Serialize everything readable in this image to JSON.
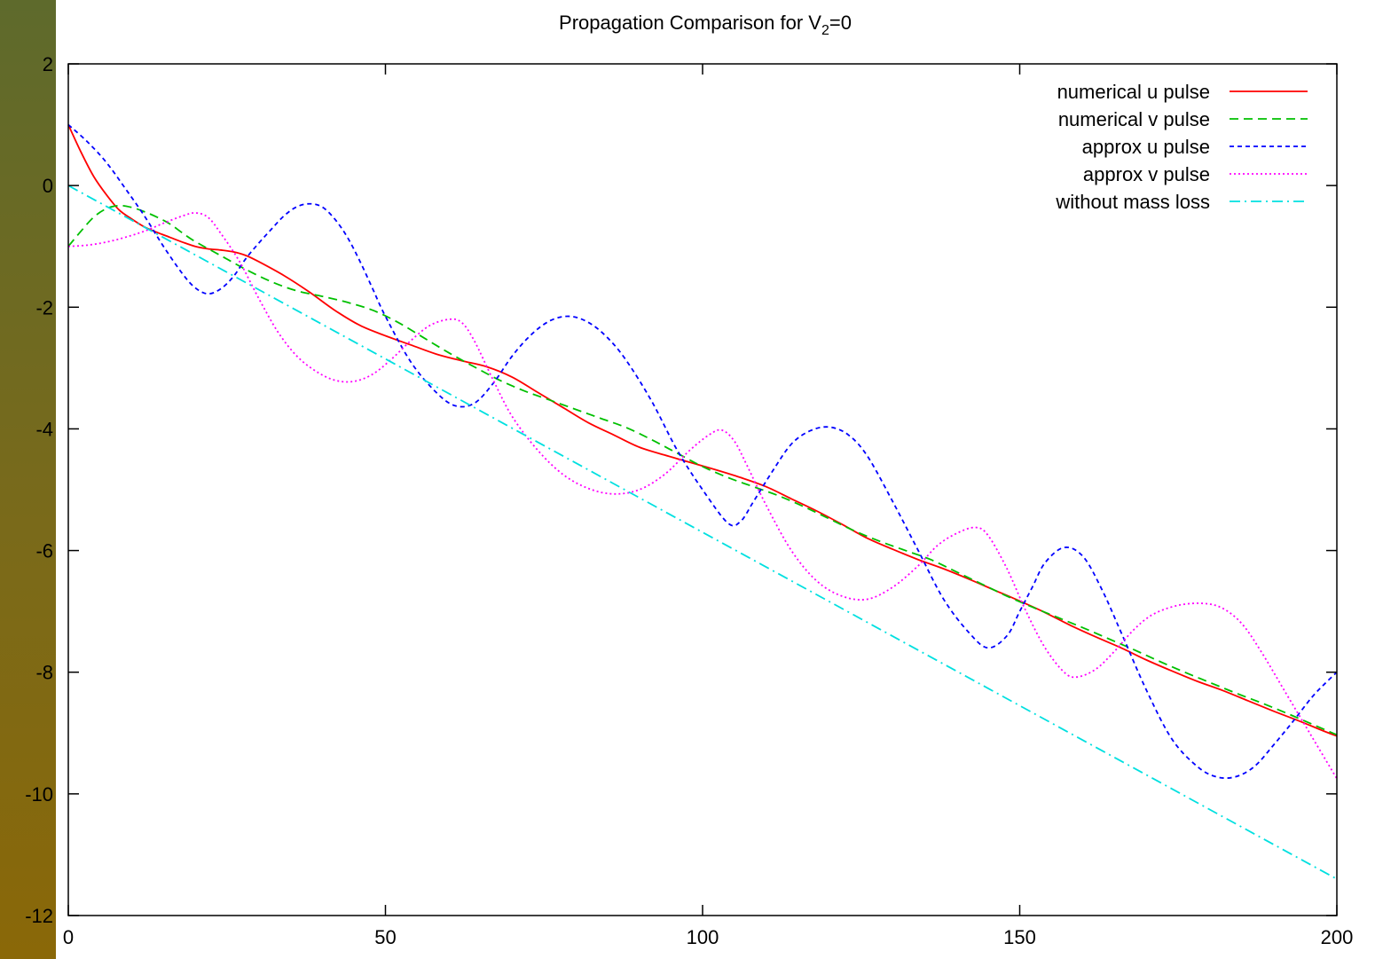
{
  "chart_data": {
    "type": "line",
    "title": "Propagation Comparison for V",
    "title_sub": "2",
    "title_suffix": "=0",
    "xlabel": "",
    "ylabel": "",
    "xlim": [
      0,
      200
    ],
    "ylim": [
      -12,
      2
    ],
    "xticks": [
      0,
      50,
      100,
      150,
      200
    ],
    "yticks": [
      2,
      0,
      -2,
      -4,
      -6,
      -8,
      -10,
      -12
    ],
    "grid": false,
    "legend_position": "top-right",
    "series": [
      {
        "name": "numerical u pulse",
        "color": "#ff0000",
        "dash": "solid",
        "points": [
          [
            0,
            1.0
          ],
          [
            2,
            0.55
          ],
          [
            4,
            0.15
          ],
          [
            6,
            -0.15
          ],
          [
            8,
            -0.4
          ],
          [
            10,
            -0.55
          ],
          [
            12,
            -0.68
          ],
          [
            14,
            -0.77
          ],
          [
            16,
            -0.85
          ],
          [
            18,
            -0.93
          ],
          [
            20,
            -1.0
          ],
          [
            22,
            -1.04
          ],
          [
            24,
            -1.06
          ],
          [
            26,
            -1.09
          ],
          [
            28,
            -1.15
          ],
          [
            30,
            -1.25
          ],
          [
            34,
            -1.48
          ],
          [
            38,
            -1.75
          ],
          [
            42,
            -2.05
          ],
          [
            46,
            -2.3
          ],
          [
            50,
            -2.47
          ],
          [
            54,
            -2.62
          ],
          [
            58,
            -2.77
          ],
          [
            62,
            -2.88
          ],
          [
            66,
            -2.98
          ],
          [
            70,
            -3.15
          ],
          [
            74,
            -3.4
          ],
          [
            78,
            -3.65
          ],
          [
            82,
            -3.9
          ],
          [
            86,
            -4.1
          ],
          [
            90,
            -4.3
          ],
          [
            94,
            -4.43
          ],
          [
            98,
            -4.55
          ],
          [
            102,
            -4.67
          ],
          [
            106,
            -4.8
          ],
          [
            110,
            -4.95
          ],
          [
            114,
            -5.15
          ],
          [
            118,
            -5.35
          ],
          [
            122,
            -5.57
          ],
          [
            126,
            -5.8
          ],
          [
            130,
            -5.98
          ],
          [
            134,
            -6.15
          ],
          [
            138,
            -6.3
          ],
          [
            142,
            -6.47
          ],
          [
            146,
            -6.65
          ],
          [
            150,
            -6.83
          ],
          [
            154,
            -7.02
          ],
          [
            158,
            -7.23
          ],
          [
            162,
            -7.42
          ],
          [
            166,
            -7.6
          ],
          [
            170,
            -7.8
          ],
          [
            174,
            -7.98
          ],
          [
            178,
            -8.15
          ],
          [
            182,
            -8.3
          ],
          [
            186,
            -8.47
          ],
          [
            190,
            -8.64
          ],
          [
            194,
            -8.8
          ],
          [
            198,
            -8.97
          ],
          [
            200,
            -9.05
          ]
        ]
      },
      {
        "name": "numerical v pulse",
        "color": "#00c000",
        "dash": "10,6",
        "points": [
          [
            0,
            -1.0
          ],
          [
            2,
            -0.75
          ],
          [
            4,
            -0.52
          ],
          [
            6,
            -0.38
          ],
          [
            8,
            -0.33
          ],
          [
            10,
            -0.36
          ],
          [
            12,
            -0.43
          ],
          [
            14,
            -0.52
          ],
          [
            16,
            -0.63
          ],
          [
            18,
            -0.78
          ],
          [
            20,
            -0.92
          ],
          [
            24,
            -1.15
          ],
          [
            28,
            -1.38
          ],
          [
            32,
            -1.58
          ],
          [
            36,
            -1.73
          ],
          [
            40,
            -1.82
          ],
          [
            44,
            -1.92
          ],
          [
            48,
            -2.05
          ],
          [
            52,
            -2.25
          ],
          [
            56,
            -2.5
          ],
          [
            60,
            -2.75
          ],
          [
            64,
            -2.98
          ],
          [
            68,
            -3.2
          ],
          [
            72,
            -3.38
          ],
          [
            76,
            -3.53
          ],
          [
            80,
            -3.68
          ],
          [
            84,
            -3.83
          ],
          [
            88,
            -3.98
          ],
          [
            92,
            -4.18
          ],
          [
            96,
            -4.4
          ],
          [
            100,
            -4.62
          ],
          [
            104,
            -4.8
          ],
          [
            108,
            -4.95
          ],
          [
            112,
            -5.1
          ],
          [
            116,
            -5.28
          ],
          [
            120,
            -5.48
          ],
          [
            124,
            -5.68
          ],
          [
            128,
            -5.85
          ],
          [
            132,
            -6.0
          ],
          [
            136,
            -6.15
          ],
          [
            140,
            -6.35
          ],
          [
            144,
            -6.55
          ],
          [
            148,
            -6.75
          ],
          [
            152,
            -6.93
          ],
          [
            156,
            -7.1
          ],
          [
            160,
            -7.27
          ],
          [
            164,
            -7.45
          ],
          [
            168,
            -7.63
          ],
          [
            172,
            -7.82
          ],
          [
            176,
            -8.0
          ],
          [
            180,
            -8.17
          ],
          [
            184,
            -8.34
          ],
          [
            188,
            -8.5
          ],
          [
            192,
            -8.67
          ],
          [
            196,
            -8.85
          ],
          [
            200,
            -9.03
          ]
        ]
      },
      {
        "name": "approx u pulse",
        "color": "#0000ff",
        "dash": "5,4",
        "points": [
          [
            0,
            1.0
          ],
          [
            3,
            0.72
          ],
          [
            6,
            0.38
          ],
          [
            9,
            -0.05
          ],
          [
            12,
            -0.5
          ],
          [
            15,
            -1.0
          ],
          [
            18,
            -1.45
          ],
          [
            20,
            -1.68
          ],
          [
            22,
            -1.78
          ],
          [
            24,
            -1.7
          ],
          [
            26,
            -1.5
          ],
          [
            28,
            -1.2
          ],
          [
            30,
            -0.95
          ],
          [
            32,
            -0.72
          ],
          [
            34,
            -0.5
          ],
          [
            36,
            -0.35
          ],
          [
            38,
            -0.3
          ],
          [
            40,
            -0.35
          ],
          [
            42,
            -0.55
          ],
          [
            44,
            -0.85
          ],
          [
            46,
            -1.25
          ],
          [
            48,
            -1.7
          ],
          [
            50,
            -2.15
          ],
          [
            54,
            -2.9
          ],
          [
            58,
            -3.4
          ],
          [
            61,
            -3.62
          ],
          [
            64,
            -3.58
          ],
          [
            67,
            -3.25
          ],
          [
            70,
            -2.8
          ],
          [
            73,
            -2.45
          ],
          [
            76,
            -2.22
          ],
          [
            79,
            -2.15
          ],
          [
            82,
            -2.25
          ],
          [
            85,
            -2.5
          ],
          [
            88,
            -2.88
          ],
          [
            92,
            -3.55
          ],
          [
            96,
            -4.35
          ],
          [
            100,
            -5.0
          ],
          [
            104,
            -5.55
          ],
          [
            106,
            -5.52
          ],
          [
            108,
            -5.2
          ],
          [
            111,
            -4.7
          ],
          [
            114,
            -4.25
          ],
          [
            117,
            -4.03
          ],
          [
            120,
            -3.97
          ],
          [
            123,
            -4.1
          ],
          [
            126,
            -4.45
          ],
          [
            130,
            -5.2
          ],
          [
            134,
            -6.0
          ],
          [
            138,
            -6.8
          ],
          [
            142,
            -7.35
          ],
          [
            145,
            -7.6
          ],
          [
            148,
            -7.4
          ],
          [
            150,
            -7.0
          ],
          [
            152,
            -6.6
          ],
          [
            154,
            -6.2
          ],
          [
            157,
            -5.95
          ],
          [
            160,
            -6.1
          ],
          [
            163,
            -6.65
          ],
          [
            166,
            -7.35
          ],
          [
            170,
            -8.3
          ],
          [
            174,
            -9.1
          ],
          [
            178,
            -9.55
          ],
          [
            181,
            -9.72
          ],
          [
            184,
            -9.72
          ],
          [
            187,
            -9.55
          ],
          [
            190,
            -9.2
          ],
          [
            193,
            -8.82
          ],
          [
            196,
            -8.42
          ],
          [
            198,
            -8.2
          ],
          [
            200,
            -8.0
          ]
        ]
      },
      {
        "name": "approx v pulse",
        "color": "#ff00ff",
        "dash": "2,3",
        "points": [
          [
            0,
            -1.0
          ],
          [
            3,
            -0.98
          ],
          [
            6,
            -0.93
          ],
          [
            9,
            -0.85
          ],
          [
            12,
            -0.75
          ],
          [
            15,
            -0.62
          ],
          [
            18,
            -0.5
          ],
          [
            20,
            -0.45
          ],
          [
            22,
            -0.52
          ],
          [
            24,
            -0.78
          ],
          [
            27,
            -1.25
          ],
          [
            30,
            -1.85
          ],
          [
            33,
            -2.4
          ],
          [
            36,
            -2.8
          ],
          [
            39,
            -3.05
          ],
          [
            42,
            -3.2
          ],
          [
            45,
            -3.22
          ],
          [
            48,
            -3.1
          ],
          [
            51,
            -2.85
          ],
          [
            54,
            -2.55
          ],
          [
            57,
            -2.3
          ],
          [
            60,
            -2.2
          ],
          [
            62,
            -2.25
          ],
          [
            64,
            -2.55
          ],
          [
            67,
            -3.2
          ],
          [
            70,
            -3.8
          ],
          [
            74,
            -4.35
          ],
          [
            78,
            -4.75
          ],
          [
            82,
            -4.98
          ],
          [
            86,
            -5.07
          ],
          [
            90,
            -5.0
          ],
          [
            94,
            -4.75
          ],
          [
            98,
            -4.35
          ],
          [
            101,
            -4.1
          ],
          [
            103,
            -4.02
          ],
          [
            105,
            -4.2
          ],
          [
            107,
            -4.6
          ],
          [
            110,
            -5.25
          ],
          [
            114,
            -6.0
          ],
          [
            118,
            -6.5
          ],
          [
            122,
            -6.75
          ],
          [
            126,
            -6.8
          ],
          [
            130,
            -6.6
          ],
          [
            134,
            -6.25
          ],
          [
            137,
            -5.92
          ],
          [
            140,
            -5.72
          ],
          [
            143,
            -5.62
          ],
          [
            145,
            -5.75
          ],
          [
            148,
            -6.3
          ],
          [
            151,
            -7.0
          ],
          [
            154,
            -7.6
          ],
          [
            157,
            -8.0
          ],
          [
            159,
            -8.08
          ],
          [
            162,
            -7.95
          ],
          [
            165,
            -7.65
          ],
          [
            168,
            -7.3
          ],
          [
            171,
            -7.05
          ],
          [
            175,
            -6.9
          ],
          [
            179,
            -6.87
          ],
          [
            182,
            -6.95
          ],
          [
            185,
            -7.2
          ],
          [
            188,
            -7.65
          ],
          [
            192,
            -8.35
          ],
          [
            196,
            -9.05
          ],
          [
            200,
            -9.75
          ]
        ]
      },
      {
        "name": "without mass loss",
        "color": "#00e0e0",
        "dash": "12,5,2,5",
        "points": [
          [
            0,
            0.0
          ],
          [
            200,
            -11.4
          ]
        ]
      }
    ]
  }
}
